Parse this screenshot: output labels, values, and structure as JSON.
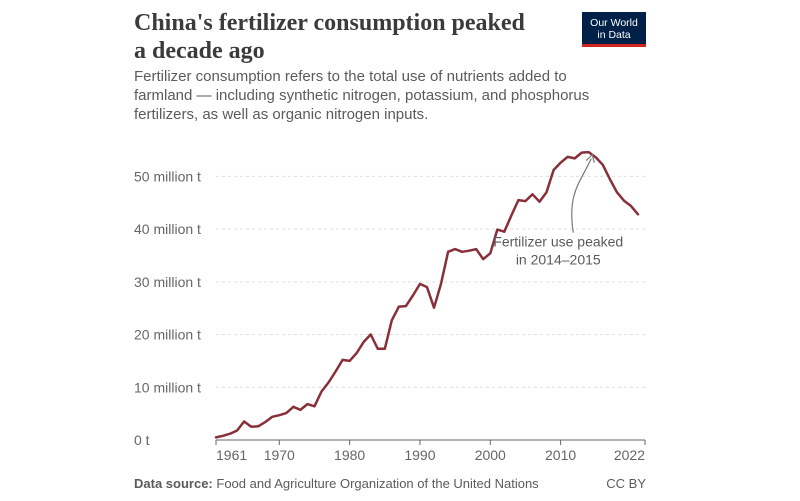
{
  "header": {
    "title_line1": "China's fertilizer consumption peaked",
    "title_line2": "a decade ago",
    "subtitle_line1": "Fertilizer consumption refers to the total use of nutrients added to",
    "subtitle_line2": "farmland — including synthetic nitrogen, potassium, and phosphorus",
    "subtitle_line3": "fertilizers, as well as organic nitrogen inputs.",
    "logo_line1": "Our World",
    "logo_line2": "in Data"
  },
  "footer": {
    "source_label": "Data source:",
    "source_text": "Food and Agriculture Organization of the United Nations",
    "license": "CC BY"
  },
  "colors": {
    "line": "#883039",
    "grid": "#dddddd",
    "axis": "#666666",
    "brand": "#002147",
    "brand_accent": "#ce261e"
  },
  "chart_data": {
    "type": "line",
    "title": "China's fertilizer consumption peaked a decade ago",
    "xlabel": "",
    "ylabel": "",
    "unit": "million t",
    "xlim": [
      1961,
      2022
    ],
    "ylim": [
      0,
      55
    ],
    "y_ticks": [
      0,
      10,
      20,
      30,
      40,
      50
    ],
    "y_tick_labels": [
      "0 t",
      "10 million t",
      "20 million t",
      "30 million t",
      "40 million t",
      "50 million t"
    ],
    "x_ticks": [
      1961,
      1970,
      1980,
      1990,
      2000,
      2010,
      2022
    ],
    "x_tick_labels": [
      "1961",
      "1970",
      "1980",
      "1990",
      "2000",
      "2010",
      "2022"
    ],
    "grid": true,
    "annotation": {
      "line1": "Fertilizer use peaked",
      "line2": "in 2014–2015",
      "target_x": 2014.5,
      "target_y": 54.5
    },
    "series": [
      {
        "name": "China",
        "x": [
          1961,
          1962,
          1963,
          1964,
          1965,
          1966,
          1967,
          1968,
          1969,
          1970,
          1971,
          1972,
          1973,
          1974,
          1975,
          1976,
          1977,
          1978,
          1979,
          1980,
          1981,
          1982,
          1983,
          1984,
          1985,
          1986,
          1987,
          1988,
          1989,
          1990,
          1991,
          1992,
          1993,
          1994,
          1995,
          1996,
          1997,
          1998,
          1999,
          2000,
          2001,
          2002,
          2003,
          2004,
          2005,
          2006,
          2007,
          2008,
          2009,
          2010,
          2011,
          2012,
          2013,
          2014,
          2015,
          2016,
          2017,
          2018,
          2019,
          2020,
          2021,
          2022
        ],
        "values": [
          0.5,
          0.8,
          1.2,
          1.8,
          3.5,
          2.5,
          2.6,
          3.4,
          4.4,
          4.7,
          5.1,
          6.3,
          5.7,
          6.8,
          6.4,
          9.2,
          10.9,
          13.0,
          15.2,
          15.0,
          16.5,
          18.6,
          20.0,
          17.3,
          17.3,
          22.7,
          25.3,
          25.4,
          27.4,
          29.6,
          29.0,
          25.1,
          29.6,
          35.7,
          36.2,
          35.7,
          35.9,
          36.2,
          34.3,
          35.4,
          39.9,
          39.5,
          42.6,
          45.5,
          45.3,
          46.6,
          45.2,
          47.0,
          51.2,
          52.6,
          53.7,
          53.4,
          54.5,
          54.6,
          53.6,
          52.2,
          49.5,
          47.0,
          45.4,
          44.4,
          42.8,
          null
        ]
      }
    ]
  }
}
